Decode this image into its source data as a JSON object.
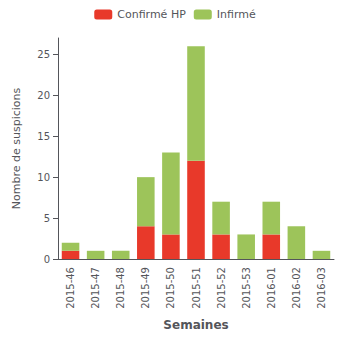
{
  "chart_data": {
    "type": "bar",
    "stacked": true,
    "categories": [
      "2015-46",
      "2015-47",
      "2015-48",
      "2015-49",
      "2015-50",
      "2015-51",
      "2015-52",
      "2015-53",
      "2016-01",
      "2016-02",
      "2016-03"
    ],
    "series": [
      {
        "name": "Confirmé HP",
        "color": "#e8392a",
        "values": [
          1,
          0,
          0,
          4,
          3,
          12,
          3,
          0,
          3,
          0,
          0
        ]
      },
      {
        "name": "Infirmé",
        "color": "#9dc45a",
        "values": [
          1,
          1,
          1,
          6,
          10,
          14,
          4,
          3,
          4,
          4,
          1
        ]
      }
    ],
    "xlabel": "Semaines",
    "ylabel": "Nombre de suspicions",
    "ylim": [
      0,
      27
    ],
    "yticks": [
      0,
      5,
      10,
      15,
      20,
      25
    ],
    "grid": false,
    "legend": "top"
  }
}
